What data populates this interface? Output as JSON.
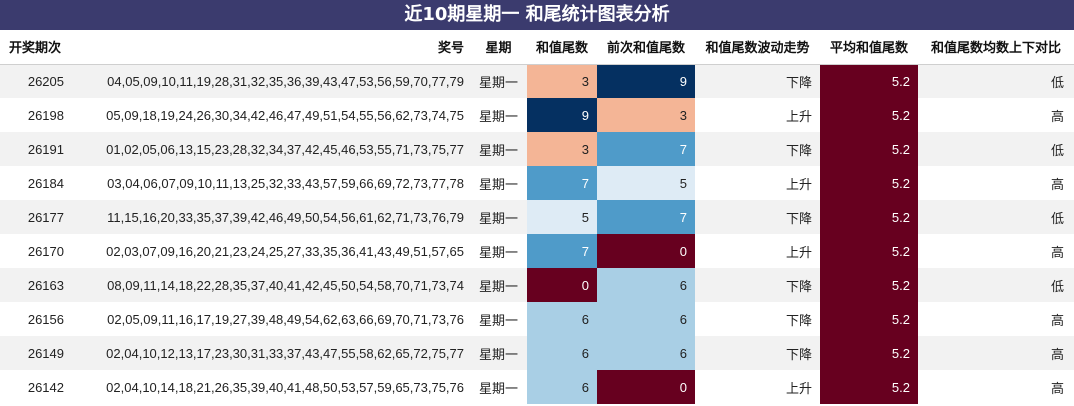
{
  "title": "近10期星期一 和尾统计图表分析",
  "headers": {
    "issue": "开奖期次",
    "numbers": "奖号",
    "week": "星期",
    "tail": "和值尾数",
    "prev_tail": "前次和值尾数",
    "trend": "和值尾数波动走势",
    "avg": "平均和值尾数",
    "compare": "和值尾数均数上下对比"
  },
  "colors": {
    "title_bg": "#3b3b6e",
    "t0": "#67001f",
    "t3": "#f4b596",
    "t5": "#deebf5",
    "t6": "#a9cfe5",
    "t7": "#4f9bc9",
    "t9": "#053061",
    "avg_bg": "#67001f"
  },
  "rows": [
    {
      "issue": "26205",
      "numbers": "04,05,09,10,11,19,28,31,32,35,36,39,43,47,53,56,59,70,77,79",
      "week": "星期一",
      "tail": 3,
      "prev_tail": 9,
      "trend": "下降",
      "avg": "5.2",
      "compare": "低"
    },
    {
      "issue": "26198",
      "numbers": "05,09,18,19,24,26,30,34,42,46,47,49,51,54,55,56,62,73,74,75",
      "week": "星期一",
      "tail": 9,
      "prev_tail": 3,
      "trend": "上升",
      "avg": "5.2",
      "compare": "高"
    },
    {
      "issue": "26191",
      "numbers": "01,02,05,06,13,15,23,28,32,34,37,42,45,46,53,55,71,73,75,77",
      "week": "星期一",
      "tail": 3,
      "prev_tail": 7,
      "trend": "下降",
      "avg": "5.2",
      "compare": "低"
    },
    {
      "issue": "26184",
      "numbers": "03,04,06,07,09,10,11,13,25,32,33,43,57,59,66,69,72,73,77,78",
      "week": "星期一",
      "tail": 7,
      "prev_tail": 5,
      "trend": "上升",
      "avg": "5.2",
      "compare": "高"
    },
    {
      "issue": "26177",
      "numbers": "11,15,16,20,33,35,37,39,42,46,49,50,54,56,61,62,71,73,76,79",
      "week": "星期一",
      "tail": 5,
      "prev_tail": 7,
      "trend": "下降",
      "avg": "5.2",
      "compare": "低"
    },
    {
      "issue": "26170",
      "numbers": "02,03,07,09,16,20,21,23,24,25,27,33,35,36,41,43,49,51,57,65",
      "week": "星期一",
      "tail": 7,
      "prev_tail": 0,
      "trend": "上升",
      "avg": "5.2",
      "compare": "高"
    },
    {
      "issue": "26163",
      "numbers": "08,09,11,14,18,22,28,35,37,40,41,42,45,50,54,58,70,71,73,74",
      "week": "星期一",
      "tail": 0,
      "prev_tail": 6,
      "trend": "下降",
      "avg": "5.2",
      "compare": "低"
    },
    {
      "issue": "26156",
      "numbers": "02,05,09,11,16,17,19,27,39,48,49,54,62,63,66,69,70,71,73,76",
      "week": "星期一",
      "tail": 6,
      "prev_tail": 6,
      "trend": "下降",
      "avg": "5.2",
      "compare": "高"
    },
    {
      "issue": "26149",
      "numbers": "02,04,10,12,13,17,23,30,31,33,37,43,47,55,58,62,65,72,75,77",
      "week": "星期一",
      "tail": 6,
      "prev_tail": 6,
      "trend": "下降",
      "avg": "5.2",
      "compare": "高"
    },
    {
      "issue": "26142",
      "numbers": "02,04,10,14,18,21,26,35,39,40,41,48,50,53,57,59,65,73,75,76",
      "week": "星期一",
      "tail": 6,
      "prev_tail": 0,
      "trend": "上升",
      "avg": "5.2",
      "compare": "高"
    }
  ]
}
